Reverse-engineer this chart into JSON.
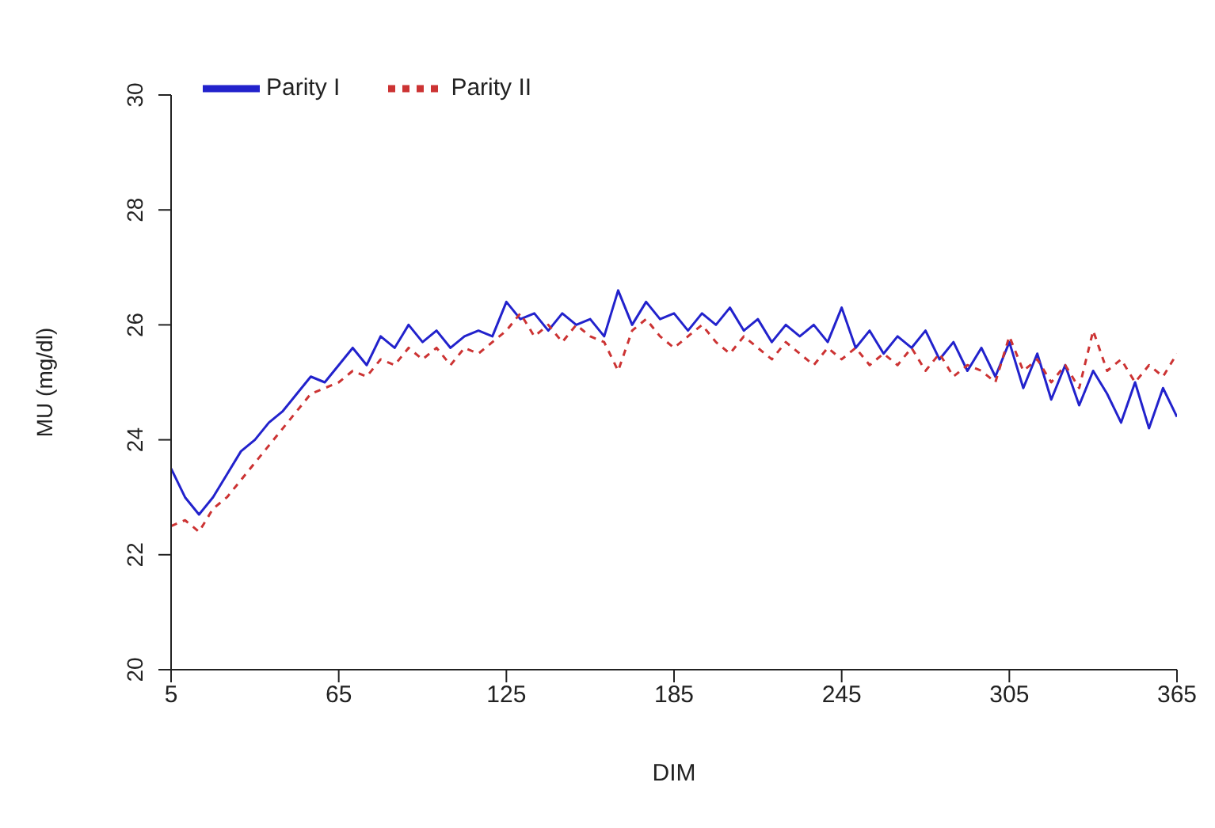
{
  "chart_data": {
    "type": "line",
    "xlabel": "DIM",
    "ylabel": "MU (mg/dl)",
    "xlim": [
      5,
      365
    ],
    "xticks": [
      5,
      65,
      125,
      185,
      245,
      305,
      365
    ],
    "ylim": [
      20,
      30
    ],
    "yticks": [
      20,
      22,
      24,
      26,
      28,
      30
    ],
    "grid": false,
    "legend": "top left",
    "marker": "none",
    "x": [
      5,
      10,
      15,
      20,
      25,
      30,
      35,
      40,
      45,
      50,
      55,
      60,
      65,
      70,
      75,
      80,
      85,
      90,
      95,
      100,
      105,
      110,
      115,
      120,
      125,
      130,
      135,
      140,
      145,
      150,
      155,
      160,
      165,
      170,
      175,
      180,
      185,
      190,
      195,
      200,
      205,
      210,
      215,
      220,
      225,
      230,
      235,
      240,
      245,
      250,
      255,
      260,
      265,
      270,
      275,
      280,
      285,
      290,
      295,
      300,
      305,
      310,
      315,
      320,
      325,
      330,
      335,
      340,
      345,
      350,
      355,
      360,
      365
    ],
    "series": [
      {
        "name": "Parity I",
        "color": "#2222cc",
        "line_style": "solid",
        "values": [
          23.5,
          23.0,
          22.7,
          23.0,
          23.4,
          23.8,
          24.0,
          24.3,
          24.5,
          24.8,
          25.1,
          25.0,
          25.3,
          25.6,
          25.3,
          25.8,
          25.6,
          26.0,
          25.7,
          25.9,
          25.6,
          25.8,
          25.9,
          25.8,
          26.4,
          26.1,
          26.2,
          25.9,
          26.2,
          26.0,
          26.1,
          25.8,
          26.6,
          26.0,
          26.4,
          26.1,
          26.2,
          25.9,
          26.2,
          26.0,
          26.3,
          25.9,
          26.1,
          25.7,
          26.0,
          25.8,
          26.0,
          25.7,
          26.3,
          25.6,
          25.9,
          25.5,
          25.8,
          25.6,
          25.9,
          25.4,
          25.7,
          25.2,
          25.6,
          25.1,
          25.7,
          24.9,
          25.5,
          24.7,
          25.3,
          24.6,
          25.2,
          24.8,
          24.3,
          25.0,
          24.2,
          24.9,
          24.4
        ]
      },
      {
        "name": "Parity II",
        "color": "#cc3333",
        "line_style": "dashed",
        "values": [
          22.5,
          22.6,
          22.4,
          22.8,
          23.0,
          23.3,
          23.6,
          23.9,
          24.2,
          24.5,
          24.8,
          24.9,
          25.0,
          25.2,
          25.1,
          25.4,
          25.3,
          25.6,
          25.4,
          25.6,
          25.3,
          25.6,
          25.5,
          25.7,
          25.9,
          26.2,
          25.8,
          26.0,
          25.7,
          26.0,
          25.8,
          25.7,
          25.2,
          25.9,
          26.1,
          25.8,
          25.6,
          25.8,
          26.0,
          25.7,
          25.5,
          25.8,
          25.6,
          25.4,
          25.7,
          25.5,
          25.3,
          25.6,
          25.4,
          25.6,
          25.3,
          25.5,
          25.3,
          25.6,
          25.2,
          25.5,
          25.1,
          25.3,
          25.2,
          25.0,
          25.8,
          25.2,
          25.4,
          25.0,
          25.3,
          24.9,
          25.9,
          25.2,
          25.4,
          25.0,
          25.3,
          25.1,
          25.5
        ]
      }
    ]
  }
}
